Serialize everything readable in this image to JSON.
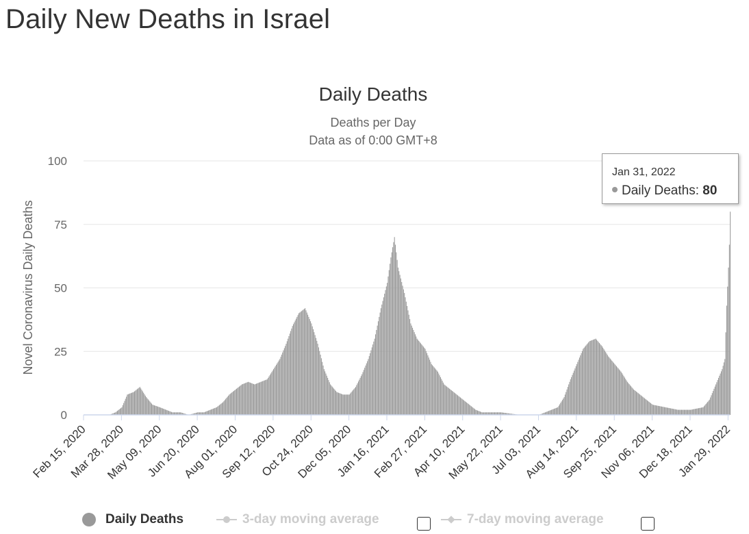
{
  "page": {
    "title": "Daily New Deaths in Israel"
  },
  "chart_data": {
    "type": "bar",
    "title": "Daily Deaths",
    "subtitle_lines": [
      "Deaths per Day",
      "Data as of 0:00 GMT+8"
    ],
    "ylabel": "Novel Coronavirus Daily Deaths",
    "ylim": [
      0,
      100
    ],
    "yticks": [
      0,
      25,
      50,
      75,
      100
    ],
    "grid": true,
    "x_tick_labels": [
      "Feb 15, 2020",
      "Mar 28, 2020",
      "May 09, 2020",
      "Jun 20, 2020",
      "Aug 01, 2020",
      "Sep 12, 2020",
      "Oct 24, 2020",
      "Dec 05, 2020",
      "Jan 16, 2021",
      "Feb 27, 2021",
      "Apr 10, 2021",
      "May 22, 2021",
      "Jul 03, 2021",
      "Aug 14, 2021",
      "Sep 25, 2021",
      "Nov 06, 2021",
      "Dec 18, 2021",
      "Jan 29, 2022"
    ],
    "x_start": "Feb 15, 2020",
    "x_end": "Jan 31, 2022",
    "series_color": "#999999",
    "series": [
      {
        "name": "Daily Deaths",
        "points": [
          [
            "Feb 15, 2020",
            0
          ],
          [
            "Mar 14, 2020",
            0
          ],
          [
            "Mar 21, 2020",
            1
          ],
          [
            "Mar 28, 2020",
            3
          ],
          [
            "Apr 03, 2020",
            8
          ],
          [
            "Apr 10, 2020",
            9
          ],
          [
            "Apr 17, 2020",
            11
          ],
          [
            "Apr 24, 2020",
            7
          ],
          [
            "May 01, 2020",
            4
          ],
          [
            "May 09, 2020",
            3
          ],
          [
            "May 16, 2020",
            2
          ],
          [
            "May 23, 2020",
            1
          ],
          [
            "Jun 01, 2020",
            1
          ],
          [
            "Jun 10, 2020",
            0
          ],
          [
            "Jun 20, 2020",
            1
          ],
          [
            "Jun 27, 2020",
            1
          ],
          [
            "Jul 04, 2020",
            2
          ],
          [
            "Jul 11, 2020",
            3
          ],
          [
            "Jul 18, 2020",
            5
          ],
          [
            "Jul 25, 2020",
            8
          ],
          [
            "Aug 01, 2020",
            10
          ],
          [
            "Aug 08, 2020",
            12
          ],
          [
            "Aug 15, 2020",
            13
          ],
          [
            "Aug 22, 2020",
            12
          ],
          [
            "Aug 29, 2020",
            13
          ],
          [
            "Sep 05, 2020",
            14
          ],
          [
            "Sep 12, 2020",
            18
          ],
          [
            "Sep 19, 2020",
            22
          ],
          [
            "Sep 26, 2020",
            28
          ],
          [
            "Oct 03, 2020",
            35
          ],
          [
            "Oct 10, 2020",
            40
          ],
          [
            "Oct 17, 2020",
            42
          ],
          [
            "Oct 24, 2020",
            36
          ],
          [
            "Oct 31, 2020",
            28
          ],
          [
            "Nov 07, 2020",
            18
          ],
          [
            "Nov 14, 2020",
            12
          ],
          [
            "Nov 21, 2020",
            9
          ],
          [
            "Nov 28, 2020",
            8
          ],
          [
            "Dec 05, 2020",
            8
          ],
          [
            "Dec 12, 2020",
            11
          ],
          [
            "Dec 19, 2020",
            16
          ],
          [
            "Dec 26, 2020",
            22
          ],
          [
            "Jan 02, 2021",
            30
          ],
          [
            "Jan 09, 2021",
            42
          ],
          [
            "Jan 16, 2021",
            52
          ],
          [
            "Jan 20, 2021",
            62
          ],
          [
            "Jan 24, 2021",
            70
          ],
          [
            "Jan 28, 2021",
            58
          ],
          [
            "Feb 04, 2021",
            48
          ],
          [
            "Feb 11, 2021",
            36
          ],
          [
            "Feb 18, 2021",
            30
          ],
          [
            "Feb 27, 2021",
            26
          ],
          [
            "Mar 06, 2021",
            20
          ],
          [
            "Mar 13, 2021",
            17
          ],
          [
            "Mar 20, 2021",
            12
          ],
          [
            "Mar 27, 2021",
            10
          ],
          [
            "Apr 03, 2021",
            8
          ],
          [
            "Apr 10, 2021",
            6
          ],
          [
            "Apr 17, 2021",
            4
          ],
          [
            "Apr 24, 2021",
            2
          ],
          [
            "May 01, 2021",
            1
          ],
          [
            "May 22, 2021",
            1
          ],
          [
            "Jun 12, 2021",
            0
          ],
          [
            "Jul 03, 2021",
            0
          ],
          [
            "Jul 10, 2021",
            1
          ],
          [
            "Jul 17, 2021",
            2
          ],
          [
            "Jul 24, 2021",
            3
          ],
          [
            "Jul 31, 2021",
            7
          ],
          [
            "Aug 07, 2021",
            14
          ],
          [
            "Aug 14, 2021",
            20
          ],
          [
            "Aug 21, 2021",
            26
          ],
          [
            "Aug 28, 2021",
            29
          ],
          [
            "Sep 04, 2021",
            30
          ],
          [
            "Sep 11, 2021",
            27
          ],
          [
            "Sep 18, 2021",
            23
          ],
          [
            "Sep 25, 2021",
            20
          ],
          [
            "Oct 02, 2021",
            17
          ],
          [
            "Oct 09, 2021",
            13
          ],
          [
            "Oct 16, 2021",
            10
          ],
          [
            "Oct 23, 2021",
            8
          ],
          [
            "Oct 30, 2021",
            6
          ],
          [
            "Nov 06, 2021",
            4
          ],
          [
            "Nov 20, 2021",
            3
          ],
          [
            "Dec 04, 2021",
            2
          ],
          [
            "Dec 18, 2021",
            2
          ],
          [
            "Jan 01, 2022",
            3
          ],
          [
            "Jan 08, 2022",
            6
          ],
          [
            "Jan 15, 2022",
            12
          ],
          [
            "Jan 22, 2022",
            18
          ],
          [
            "Jan 25, 2022",
            22
          ],
          [
            "Jan 27, 2022",
            43
          ],
          [
            "Jan 29, 2022",
            58
          ],
          [
            "Jan 30, 2022",
            67
          ],
          [
            "Jan 31, 2022",
            80
          ]
        ]
      },
      {
        "name": "3-day moving average"
      },
      {
        "name": "7-day moving average"
      }
    ],
    "legend": {
      "placement": "bottom",
      "items": [
        {
          "label": "Daily Deaths",
          "enabled": true,
          "color": "#999999"
        },
        {
          "label": "3-day moving average",
          "enabled": false,
          "color": "#cccccc"
        },
        {
          "label": "7-day moving average",
          "enabled": false,
          "color": "#cccccc"
        }
      ]
    },
    "tooltip": {
      "date": "Jan 31, 2022",
      "label": "Daily Deaths:",
      "value": "80"
    }
  }
}
